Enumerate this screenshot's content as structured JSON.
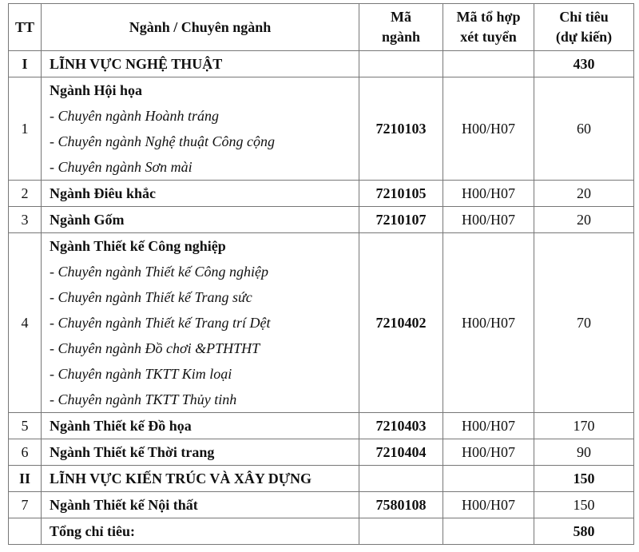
{
  "headers": [
    "TT",
    "Ngành / Chuyên ngành",
    "Mã ngành",
    "Mã tổ hợp xét tuyển",
    "Chỉ tiêu (dự kiến)"
  ],
  "header_lines": {
    "ma_nganh": [
      "Mã",
      "ngành"
    ],
    "to_hop": [
      "Mã tổ hợp",
      "xét tuyển"
    ],
    "chi_tieu": [
      "Chỉ tiêu",
      "(dự kiến)"
    ]
  },
  "rows": [
    {
      "tt": "I",
      "name": "LĨNH VỰC NGHỆ THUẬT",
      "code": "",
      "combo": "",
      "quota": "430",
      "section": true
    },
    {
      "tt": "1",
      "name": "Ngành Hội họa",
      "subs": [
        "- Chuyên ngành Hoành tráng",
        "- Chuyên ngành Nghệ thuật Công cộng",
        "- Chuyên ngành Sơn mài"
      ],
      "code": "7210103",
      "combo": "H00/H07",
      "quota": "60"
    },
    {
      "tt": "2",
      "name": "Ngành Điêu khắc",
      "code": "7210105",
      "combo": "H00/H07",
      "quota": "20"
    },
    {
      "tt": "3",
      "name": "Ngành Gốm",
      "code": "7210107",
      "combo": "H00/H07",
      "quota": "20"
    },
    {
      "tt": "4",
      "name": "Ngành Thiết kế Công nghiệp",
      "subs": [
        "- Chuyên ngành Thiết kế Công nghiệp",
        "- Chuyên ngành Thiết kế Trang sức",
        "- Chuyên ngành Thiết kế Trang trí Dệt",
        "- Chuyên ngành Đồ chơi &PTHTHT",
        "- Chuyên ngành TKTT Kim loại",
        "- Chuyên ngành TKTT Thủy tinh"
      ],
      "code": "7210402",
      "combo": "H00/H07",
      "quota": "70"
    },
    {
      "tt": "5",
      "name": "Ngành Thiết kế Đồ họa",
      "code": "7210403",
      "combo": "H00/H07",
      "quota": "170"
    },
    {
      "tt": "6",
      "name": "Ngành Thiết kế Thời trang",
      "code": "7210404",
      "combo": "H00/H07",
      "quota": "90"
    },
    {
      "tt": "II",
      "name": "LĨNH VỰC KIẾN TRÚC VÀ XÂY DỰNG",
      "code": "",
      "combo": "",
      "quota": "150",
      "section": true
    },
    {
      "tt": "7",
      "name": "Ngành Thiết kế Nội thất",
      "code": "7580108",
      "combo": "H00/H07",
      "quota": "150"
    },
    {
      "tt": "",
      "name": "Tổng chỉ tiêu:",
      "code": "",
      "combo": "",
      "quota": "580",
      "section": true
    }
  ]
}
